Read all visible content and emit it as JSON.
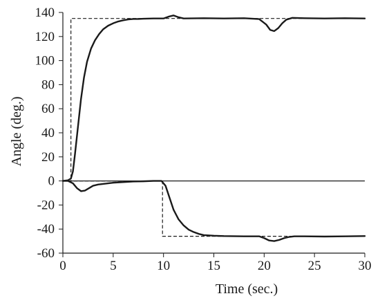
{
  "chart_data": {
    "type": "line",
    "xlabel": "Time (sec.)",
    "ylabel": "Angle (deg.)",
    "xlim": [
      0,
      30
    ],
    "ylim": [
      -60,
      140
    ],
    "xticks": [
      0,
      5,
      10,
      15,
      20,
      25,
      30
    ],
    "yticks": [
      140,
      120,
      100,
      80,
      60,
      40,
      20,
      0,
      -20,
      -40,
      -60
    ],
    "grid": false,
    "legend": "none",
    "reference_line": {
      "y": 0
    },
    "series": [
      {
        "style": "dashed",
        "x": [
          0,
          0.8,
          0.8,
          30
        ],
        "y": [
          0,
          0,
          135,
          135
        ]
      },
      {
        "style": "solid",
        "x": [
          0,
          0.5,
          0.8,
          1.0,
          1.2,
          1.5,
          1.8,
          2.1,
          2.4,
          2.8,
          3.2,
          3.6,
          4.0,
          4.5,
          5.0,
          5.5,
          6.0,
          6.5,
          7.0,
          7.5,
          8.0,
          9.0,
          10.0,
          10.5,
          11.0,
          11.5,
          12.0,
          14.0,
          16.0,
          18.0,
          19.5,
          20.2,
          20.6,
          21.0,
          21.4,
          21.8,
          22.2,
          22.8,
          24.0,
          26.0,
          28.0,
          30.0
        ],
        "y": [
          0,
          0.5,
          2,
          8,
          22,
          45,
          68,
          86,
          99,
          110,
          117,
          122,
          126,
          129,
          131,
          132.5,
          133.5,
          134.2,
          134.6,
          134.6,
          134.8,
          135,
          135,
          136.5,
          137.5,
          136,
          135,
          135.2,
          135,
          135.2,
          134.5,
          130,
          125.5,
          124.5,
          127,
          131,
          134,
          135.5,
          135.2,
          135,
          135.2,
          135
        ]
      },
      {
        "style": "dashed",
        "x": [
          0,
          9.9,
          9.9,
          30
        ],
        "y": [
          0,
          0,
          -46,
          -46
        ]
      },
      {
        "style": "solid",
        "x": [
          0,
          0.5,
          1.0,
          1.4,
          1.8,
          2.2,
          2.6,
          3.0,
          3.5,
          4.0,
          5.0,
          6.0,
          7.0,
          8.0,
          9.0,
          9.8,
          10.2,
          10.6,
          11.0,
          11.5,
          12.0,
          12.5,
          13.0,
          13.5,
          14.0,
          15.0,
          16.0,
          18.0,
          19.5,
          20.0,
          20.5,
          21.0,
          21.5,
          22.0,
          22.5,
          23.0,
          24.0,
          26.0,
          28.0,
          30.0
        ],
        "y": [
          0,
          0,
          -2,
          -6,
          -8.5,
          -8,
          -6,
          -4,
          -3,
          -2.5,
          -1.5,
          -1,
          -0.5,
          -0.3,
          0,
          0,
          -4,
          -14,
          -24,
          -32,
          -37,
          -40.5,
          -42.5,
          -44,
          -45,
          -45.5,
          -45.8,
          -46,
          -46,
          -47.5,
          -49.5,
          -50,
          -49,
          -47.5,
          -46.5,
          -46,
          -46,
          -46.2,
          -46,
          -45.8
        ]
      }
    ]
  }
}
